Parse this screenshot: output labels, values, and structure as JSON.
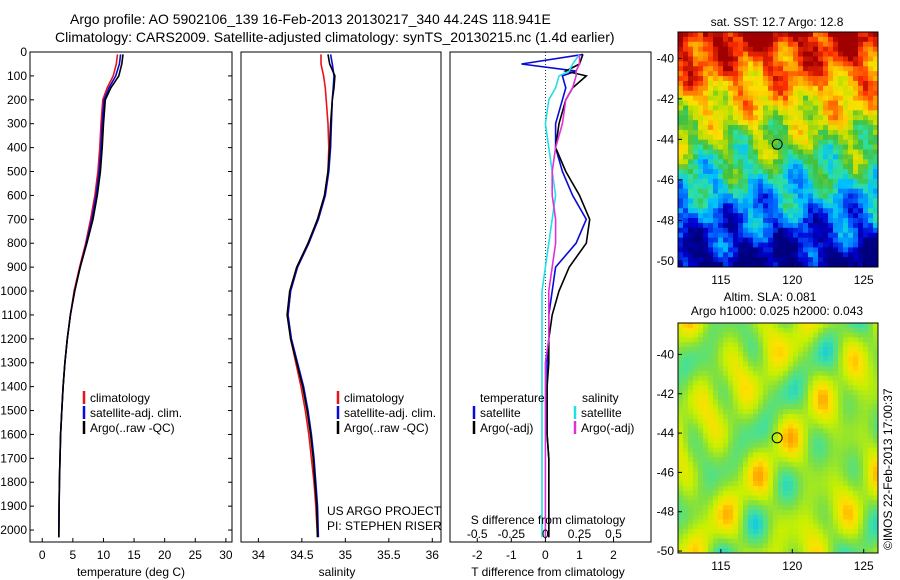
{
  "header": {
    "line1": "Argo profile: AO 5902106_139 16-Feb-2013 20130217_340 44.24S 118.941E",
    "line2": "Climatology: CARS2009. Satellite-adjusted climatology: synTS_20130215.nc (1.4d earlier)"
  },
  "side_stamp": "©IMOS 22-Feb-2013 17:00:37",
  "colors": {
    "red": "#e8141c",
    "blue": "#0a0ad8",
    "black": "#000000",
    "cyan": "#22e0e8",
    "magenta": "#e030d8"
  },
  "chart_data": [
    {
      "type": "line",
      "xlabel": "temperature (deg C)",
      "xlim": [
        -2,
        31
      ],
      "xticks": [
        "0",
        "5",
        "10",
        "15",
        "20",
        "25",
        "30"
      ],
      "ylim": [
        0,
        2050
      ],
      "yticks": [
        "0",
        "100",
        "200",
        "300",
        "400",
        "500",
        "600",
        "700",
        "800",
        "900",
        "1000",
        "1100",
        "1200",
        "1300",
        "1400",
        "1500",
        "1600",
        "1700",
        "1800",
        "1900",
        "2000"
      ],
      "legend": [
        "climatology",
        "satellite-adj. clim.",
        "Argo(..raw -QC)"
      ],
      "series": [
        {
          "name": "climatology",
          "color": "red",
          "x": [
            12.3,
            12.1,
            11.6,
            10.6,
            9.9,
            9.6,
            9.4,
            9.1,
            8.6,
            7.9,
            7.1,
            6.1,
            5.2,
            4.6,
            4.1,
            3.7,
            3.4,
            3.2,
            3.0,
            2.9,
            2.8,
            2.75,
            2.7
          ],
          "y": [
            10,
            50,
            100,
            150,
            200,
            300,
            400,
            500,
            600,
            700,
            800,
            900,
            1000,
            1100,
            1200,
            1300,
            1400,
            1500,
            1600,
            1700,
            1800,
            1900,
            2030
          ]
        },
        {
          "name": "satellite-adj. clim.",
          "color": "blue",
          "x": [
            12.8,
            12.6,
            12.0,
            10.9,
            10.1,
            9.8,
            9.6,
            9.3,
            8.8,
            8.1,
            7.2,
            6.2,
            5.3,
            4.6,
            4.1,
            3.7,
            3.4,
            3.2,
            3.0,
            2.9,
            2.8,
            2.75,
            2.7
          ],
          "y": [
            10,
            50,
            100,
            150,
            200,
            300,
            400,
            500,
            600,
            700,
            800,
            900,
            1000,
            1100,
            1200,
            1300,
            1400,
            1500,
            1600,
            1700,
            1800,
            1900,
            2030
          ]
        },
        {
          "name": "Argo(..raw -QC)",
          "color": "black",
          "x": [
            13.2,
            13.0,
            12.5,
            11.2,
            10.3,
            10.0,
            9.8,
            9.5,
            9.0,
            8.3,
            7.3,
            6.2,
            5.3,
            4.6,
            4.1,
            3.7,
            3.4,
            3.2,
            3.0,
            2.9,
            2.8,
            2.75,
            2.7
          ],
          "y": [
            10,
            50,
            100,
            150,
            200,
            300,
            400,
            500,
            600,
            700,
            800,
            900,
            1000,
            1100,
            1200,
            1300,
            1400,
            1500,
            1600,
            1700,
            1800,
            1900,
            2030
          ]
        }
      ]
    },
    {
      "type": "line",
      "xlabel": "salinity",
      "xlim": [
        33.8,
        36.1
      ],
      "xticks": [
        "34",
        "34.5",
        "35",
        "35.5",
        "36"
      ],
      "ylim": [
        0,
        2050
      ],
      "legend": [
        "climatology",
        "satellite-adj. clim.",
        "Argo(..raw -QC)"
      ],
      "annotation": [
        "US ARGO PROJECT",
        "PI: STEPHEN RISER"
      ],
      "series": [
        {
          "name": "climatology",
          "color": "red",
          "x": [
            34.72,
            34.72,
            34.75,
            34.77,
            34.78,
            34.8,
            34.81,
            34.8,
            34.76,
            34.68,
            34.58,
            34.45,
            34.37,
            34.34,
            34.37,
            34.43,
            34.49,
            34.54,
            34.58,
            34.61,
            34.64,
            34.66,
            34.68
          ],
          "y": [
            10,
            50,
            100,
            150,
            200,
            300,
            400,
            500,
            600,
            700,
            800,
            900,
            1000,
            1100,
            1200,
            1300,
            1400,
            1500,
            1600,
            1700,
            1800,
            1900,
            2030
          ]
        },
        {
          "name": "satellite-adj. clim.",
          "color": "blue",
          "x": [
            34.83,
            34.85,
            34.87,
            34.86,
            34.85,
            34.84,
            34.83,
            34.81,
            34.77,
            34.69,
            34.58,
            34.45,
            34.37,
            34.34,
            34.38,
            34.45,
            34.52,
            34.57,
            34.61,
            34.64,
            34.66,
            34.68,
            34.69
          ],
          "y": [
            10,
            50,
            100,
            150,
            200,
            300,
            400,
            500,
            600,
            700,
            800,
            900,
            1000,
            1100,
            1200,
            1300,
            1400,
            1500,
            1600,
            1700,
            1800,
            1900,
            2030
          ]
        },
        {
          "name": "Argo(..raw -QC)",
          "color": "black",
          "x": [
            34.8,
            34.82,
            34.88,
            34.87,
            34.85,
            34.83,
            34.82,
            34.8,
            34.76,
            34.68,
            34.57,
            34.44,
            34.36,
            34.33,
            34.37,
            34.44,
            34.51,
            34.56,
            34.6,
            34.63,
            34.65,
            34.67,
            34.68
          ],
          "y": [
            10,
            50,
            100,
            150,
            200,
            300,
            400,
            500,
            600,
            700,
            800,
            900,
            1000,
            1100,
            1200,
            1300,
            1400,
            1500,
            1600,
            1700,
            1800,
            1900,
            2030
          ]
        }
      ]
    },
    {
      "type": "line",
      "xlabel": "T difference from climatology",
      "xlabel_top": "S difference from climatology",
      "xlim": [
        -2.8,
        3.1
      ],
      "xticks": [
        "-2",
        "-1",
        "0",
        "1",
        "2"
      ],
      "sticks": [
        "-0.5",
        "-0.25",
        "0",
        "0.25",
        "0.5"
      ],
      "ylim": [
        0,
        2050
      ],
      "legend_headers": [
        "temperature",
        "salinity"
      ],
      "legend": [
        "satellite",
        "Argo(-adj)",
        "satellite",
        "Argo(-adj)"
      ],
      "series": [
        {
          "name": "satellite",
          "color": "blue",
          "x": [
            1.1,
            -0.7,
            0.9,
            0.5,
            0.6,
            0.5,
            0.3,
            0.3,
            0.5,
            0.8,
            1.2,
            0.9,
            0.3,
            0.2,
            0.1,
            0.1,
            0.05,
            0.05,
            0.05,
            0.05,
            0.1,
            0.1,
            0.1
          ],
          "y": [
            10,
            50,
            80,
            100,
            150,
            200,
            300,
            400,
            500,
            600,
            700,
            800,
            900,
            1000,
            1100,
            1200,
            1300,
            1400,
            1500,
            1600,
            1700,
            1800,
            2030
          ]
        },
        {
          "name": "Argo(-adj)",
          "color": "black",
          "x": [
            1.1,
            1.0,
            0.6,
            1.2,
            0.8,
            0.6,
            0.4,
            0.3,
            0.6,
            1.0,
            1.3,
            1.2,
            0.7,
            0.4,
            0.2,
            0.1,
            0.1,
            0.05,
            0.05,
            0.05,
            0.1,
            0.1,
            0.1
          ],
          "y": [
            10,
            50,
            80,
            100,
            150,
            200,
            300,
            400,
            500,
            600,
            700,
            800,
            900,
            1000,
            1100,
            1200,
            1300,
            1400,
            1500,
            1600,
            1700,
            1800,
            2030
          ]
        },
        {
          "name": "satellite",
          "color": "cyan",
          "x": [
            1.0,
            0.8,
            0.7,
            0.4,
            0.3,
            0.1,
            0.0,
            0.1,
            0.2,
            0.3,
            0.2,
            0.1,
            0.0,
            -0.1,
            -0.1,
            -0.1,
            -0.1,
            -0.1,
            -0.1,
            -0.1,
            -0.1,
            -0.1,
            -0.1
          ],
          "y": [
            10,
            50,
            80,
            100,
            150,
            200,
            300,
            400,
            500,
            600,
            700,
            800,
            900,
            1000,
            1100,
            1200,
            1300,
            1400,
            1500,
            1600,
            1700,
            1800,
            2030
          ]
        },
        {
          "name": "Argo(-adj)",
          "color": "magenta",
          "x": [
            1.0,
            1.0,
            0.9,
            0.9,
            0.8,
            0.6,
            0.5,
            0.3,
            0.2,
            0.2,
            0.3,
            0.3,
            0.2,
            0.1,
            0.1,
            0.1,
            0.0,
            0.0,
            0.0,
            0.0,
            0.0,
            0.0,
            0.0
          ],
          "y": [
            10,
            50,
            80,
            100,
            150,
            200,
            300,
            400,
            500,
            600,
            700,
            800,
            900,
            1000,
            1100,
            1200,
            1300,
            1400,
            1500,
            1600,
            1700,
            1800,
            2030
          ]
        }
      ]
    },
    {
      "type": "heatmap",
      "title": "sat. SST: 12.7  Argo: 12.8",
      "xlim": [
        112,
        126
      ],
      "ylim": [
        -50.3,
        -38.7
      ],
      "xticks": [
        "115",
        "120",
        "125"
      ],
      "yticks": [
        "-40",
        "-42",
        "-44",
        "-46",
        "-48",
        "-50"
      ],
      "marker": {
        "lon": 118.941,
        "lat": -44.24
      },
      "colorscale": [
        "#00007f",
        "#0000d0",
        "#0060ff",
        "#00c0ff",
        "#30e0a0",
        "#40c040",
        "#c0e000",
        "#ffe000",
        "#ff9000",
        "#ff3000",
        "#a00000"
      ],
      "value_range": [
        8,
        17
      ]
    },
    {
      "type": "heatmap",
      "title": "Altim. SLA: 0.081",
      "subtitle": "Argo h1000: 0.025 h2000: 0.043",
      "xlim": [
        112,
        126
      ],
      "ylim": [
        -50.1,
        -38.4
      ],
      "xticks": [
        "115",
        "120",
        "125"
      ],
      "yticks": [
        "-40",
        "-42",
        "-44",
        "-46",
        "-48",
        "-50"
      ],
      "marker": {
        "lon": 118.941,
        "lat": -44.24
      },
      "colorscale": [
        "#0030ff",
        "#00c0ff",
        "#40e0a0",
        "#80e040",
        "#c8f000",
        "#ffe000",
        "#ff9000"
      ],
      "value_range": [
        -0.3,
        0.3
      ]
    }
  ]
}
